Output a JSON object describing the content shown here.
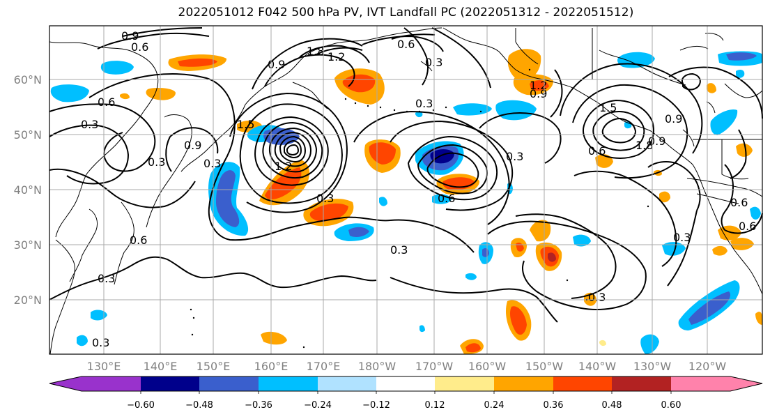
{
  "title": "2022051012 F042 500 hPa PV, IVT Landfall PC (2022051312 - 2022051512)",
  "lat_labels": [
    "60°N",
    "50°N",
    "40°N",
    "30°N",
    "20°N"
  ],
  "lon_labels": [
    "130°E",
    "140°E",
    "150°E",
    "160°E",
    "170°E",
    "180°W",
    "170°W",
    "160°W",
    "150°W",
    "140°W",
    "130°W",
    "120°W"
  ],
  "contour_labels": [
    "0.9",
    "0.6",
    "1.8",
    "1.2",
    "0.3",
    "0.6",
    "1.5",
    "0.9",
    "0.3",
    "0.9",
    "1.2",
    "0.3",
    "0.6",
    "0.3",
    "0.3",
    "0.6",
    "0.3",
    "0.3",
    "0.3",
    "0.3",
    "0.6",
    "0.3",
    "0.6",
    "0.9",
    "1.5",
    "0.9",
    "1.8",
    "0.6",
    "0.3",
    "0.9",
    "0.6",
    "1.2",
    "0.3"
  ],
  "colorbar": {
    "tick_labels": [
      "−0.60",
      "−0.48",
      "−0.36",
      "−0.24",
      "−0.12",
      "0.12",
      "0.24",
      "0.36",
      "0.48",
      "0.60"
    ],
    "colors": [
      "#9932cc",
      "#00008b",
      "#3a5fcd",
      "#00bfff",
      "#b0e2ff",
      "#ffffff",
      "#ffec8b",
      "#ffa500",
      "#ff4500",
      "#b22222",
      "#ff82ab"
    ]
  }
}
